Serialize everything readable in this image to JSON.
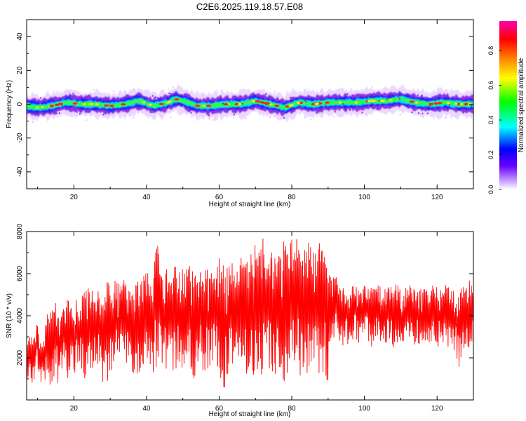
{
  "figure_title": "C2E6.2025.119.18.57.E08",
  "colors": {
    "snr_line": "#ff0000",
    "colormap": [
      "#ffffff",
      "#c8a0ff",
      "#6600ff",
      "#0000ff",
      "#00ffff",
      "#00ff00",
      "#ffff00",
      "#ff7f00",
      "#ff0000",
      "#ff00ff"
    ]
  },
  "chart_data": [
    {
      "type": "heatmap",
      "title": "",
      "xlabel": "Height of straight line (km)",
      "ylabel": "Frequency (Hz)",
      "xlim": [
        7,
        130
      ],
      "ylim": [
        -50,
        50
      ],
      "x_ticks": [
        20,
        40,
        60,
        80,
        100,
        120
      ],
      "y_ticks": [
        -40,
        -20,
        0,
        20,
        40
      ],
      "grid": false,
      "colorbar": {
        "label": "Normalized spectral amplitude",
        "range": [
          0,
          0.97
        ],
        "ticks": [
          0.0,
          0.2,
          0.4,
          0.6,
          0.8
        ],
        "tick_labels": [
          "0.0",
          "0.2",
          "0.4",
          "0.6",
          "0.8"
        ],
        "colormap": "rainbow (white-purple-blue-cyan-green-yellow-red-magenta)"
      },
      "band_center_hz": {
        "x": [
          7,
          10,
          14,
          18,
          22,
          26,
          30,
          34,
          38,
          42,
          46,
          48,
          50,
          54,
          58,
          62,
          66,
          70,
          74,
          78,
          82,
          86,
          90,
          94,
          98,
          102,
          106,
          110,
          114,
          118,
          122,
          126,
          130
        ],
        "y": [
          -1,
          -2,
          -1,
          1,
          0,
          0,
          -1,
          0,
          2,
          -1,
          1,
          3,
          2,
          -1,
          -1,
          0,
          0,
          2,
          0,
          -2,
          1,
          0,
          1,
          1,
          1,
          2,
          2,
          3,
          1,
          0,
          1,
          0,
          0
        ]
      },
      "band_peak_amplitude": 0.9
    },
    {
      "type": "line",
      "title": "",
      "xlabel": "Height of straight line (km)",
      "ylabel": "SNR (10 * v/v)",
      "xlim": [
        7,
        130
      ],
      "ylim": [
        0,
        8000
      ],
      "x_ticks": [
        20,
        40,
        60,
        80,
        100,
        120
      ],
      "y_ticks": [
        2000,
        4000,
        6000,
        8000
      ],
      "grid": false,
      "series": [
        {
          "color": "#ff0000",
          "x": [
            7,
            8,
            9,
            10,
            11,
            12,
            13,
            14,
            15,
            16,
            17,
            18,
            19,
            20,
            21,
            22,
            23,
            24,
            25,
            26,
            27,
            28,
            29,
            30,
            31,
            32,
            33,
            34,
            35,
            36,
            37,
            38,
            39,
            40,
            41,
            42,
            43,
            44,
            45,
            46,
            47,
            48,
            49,
            50,
            51,
            52,
            53,
            54,
            55,
            56,
            57,
            58,
            59,
            60,
            61,
            62,
            63,
            64,
            65,
            66,
            67,
            68,
            69,
            70,
            71,
            72,
            73,
            74,
            75,
            76,
            77,
            78,
            79,
            80,
            81,
            82,
            83,
            84,
            85,
            86,
            87,
            88,
            89,
            90,
            91,
            92,
            93,
            94,
            95,
            96,
            97,
            98,
            99,
            100,
            101,
            102,
            103,
            104,
            105,
            106,
            107,
            108,
            109,
            110,
            111,
            112,
            113,
            114,
            115,
            116,
            117,
            118,
            119,
            120,
            121,
            122,
            123,
            124,
            125,
            126,
            127,
            128,
            129,
            130
          ],
          "upper": [
            2600,
            3100,
            3000,
            3800,
            2600,
            3500,
            4400,
            4200,
            4800,
            4500,
            4400,
            4800,
            5000,
            4700,
            4900,
            5200,
            5300,
            5400,
            5200,
            5100,
            5500,
            5300,
            5700,
            5400,
            5600,
            5800,
            5500,
            5900,
            5600,
            5700,
            6000,
            6100,
            5900,
            6200,
            6000,
            6400,
            7600,
            6300,
            6200,
            6500,
            6100,
            6400,
            6200,
            6300,
            6300,
            6500,
            6000,
            6100,
            6300,
            6200,
            6400,
            6500,
            6300,
            6800,
            6600,
            6300,
            6500,
            6800,
            6600,
            7000,
            6500,
            6900,
            7300,
            7400,
            7000,
            7800,
            6800,
            7100,
            7400,
            7000,
            7300,
            7600,
            7200,
            8100,
            7700,
            7500,
            7800,
            7300,
            7600,
            7200,
            7000,
            7800,
            7100,
            6500,
            6200,
            5900,
            5700,
            5400,
            5600,
            5300,
            5500,
            5500,
            5200,
            5600,
            5300,
            5400,
            5600,
            5400,
            5500,
            5200,
            5700,
            5300,
            5800,
            5400,
            5200,
            5500,
            5600,
            5300,
            5400,
            5600,
            5300,
            5200,
            5500,
            5400,
            5300,
            5600,
            5500,
            5400,
            5300,
            5400,
            5500,
            5700,
            5900,
            6000
          ],
          "lower": [
            1000,
            800,
            400,
            1600,
            600,
            1000,
            500,
            200,
            1200,
            300,
            1600,
            800,
            1400,
            1100,
            1700,
            1300,
            900,
            1500,
            1100,
            1800,
            1300,
            800,
            600,
            1200,
            1700,
            1400,
            1900,
            1200,
            1600,
            1000,
            1500,
            900,
            1700,
            1300,
            1100,
            1000,
            1700,
            1400,
            1200,
            1900,
            1500,
            1100,
            1800,
            1300,
            1200,
            1600,
            1000,
            1400,
            1600,
            1200,
            1500,
            1000,
            1800,
            1200,
            700,
            300,
            1400,
            1100,
            1300,
            1600,
            1300,
            1200,
            1000,
            1300,
            600,
            1500,
            900,
            1500,
            1200,
            1300,
            1100,
            800,
            300,
            1100,
            1300,
            800,
            1000,
            1100,
            1200,
            800,
            1300,
            1200,
            1000,
            900,
            2300,
            2700,
            2900,
            2400,
            2700,
            2500,
            2900,
            2800,
            2600,
            3000,
            2700,
            2500,
            2800,
            2600,
            2900,
            2700,
            2800,
            2500,
            2600,
            2800,
            2600,
            2900,
            2700,
            2500,
            2600,
            2400,
            2800,
            2700,
            2500,
            2400,
            2600,
            2700,
            2500,
            2600,
            2200,
            1500,
            2300,
            2500,
            2400,
            2700
          ]
        }
      ]
    }
  ]
}
